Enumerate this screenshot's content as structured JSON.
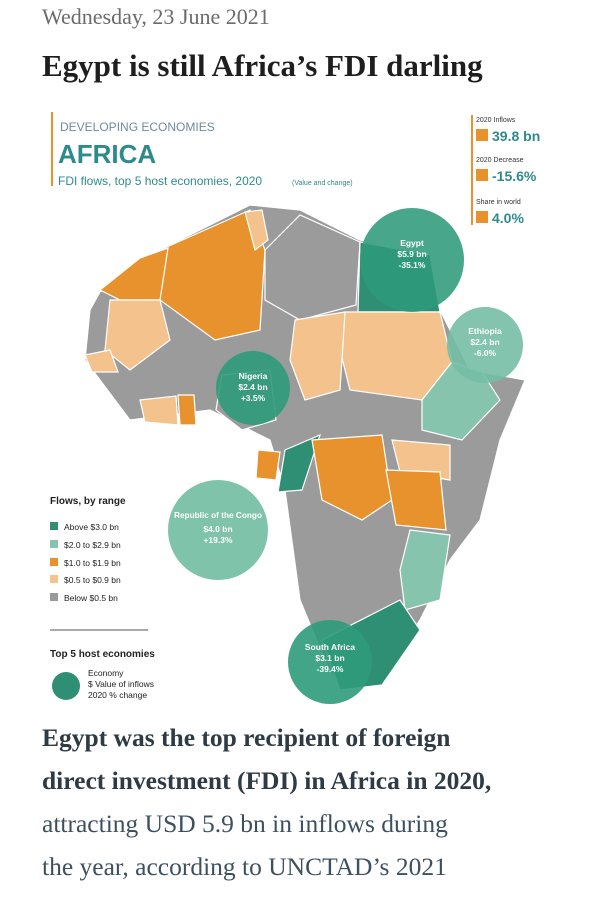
{
  "header": {
    "date": "Wednesday, 23 June 2021",
    "title": "Egypt is still Africa’s FDI darling"
  },
  "infographic": {
    "kicker": "DEVELOPING ECONOMIES",
    "heading": "AFRICA",
    "subtitle": "FDI flows, top 5 host economies, 2020",
    "subtitle_note": "(Value and change)",
    "stats": [
      {
        "label": "2020 Inflows",
        "value": "39.8 bn"
      },
      {
        "label": "2020 Decrease",
        "value": "-15.6%"
      },
      {
        "label": "Share in world",
        "value": "4.0%"
      }
    ],
    "bubbles": [
      {
        "name": "Egypt",
        "value": "$5.9 bn",
        "change": "-35.1%"
      },
      {
        "name": "Ethiopia",
        "value": "$2.4 bn",
        "change": "-6.0%"
      },
      {
        "name": "Nigeria",
        "value": "$2.4 bn",
        "change": "+3.5%"
      },
      {
        "name": "Republic of the Congo",
        "value": "$4.0 bn",
        "change": "+19.3%"
      },
      {
        "name": "South Africa",
        "value": "$3.1 bn",
        "change": "-39.4%"
      }
    ],
    "legend": {
      "title": "Flows, by range",
      "items": [
        "Above $3.0 bn",
        "$2.0 to $2.9 bn",
        "$1.0 to $1.9 bn",
        "$0.5 to $0.9 bn",
        "Below $0.5 bn"
      ]
    },
    "key": {
      "title": "Top 5 host economies",
      "lines": [
        "Economy",
        "$ Value of inflows",
        "2020 % change"
      ]
    }
  },
  "paragraph": {
    "bold_lines": [
      "Egypt was the top recipient of foreign",
      "direct investment (FDI) in Africa in 2020,"
    ],
    "lines": [
      "attracting USD 5.9 bn in inflows during",
      "the year, according to UNCTAD’s 2021"
    ]
  }
}
